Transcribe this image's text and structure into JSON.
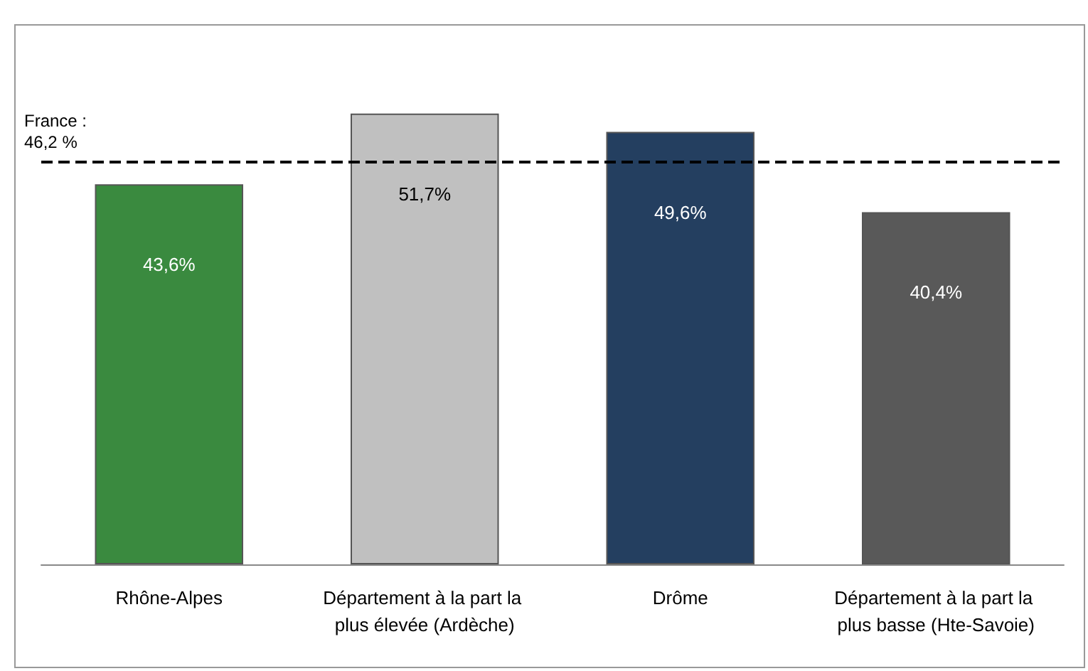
{
  "chart_data": {
    "type": "bar",
    "categories": [
      "Rhône-Alpes",
      "Département à la part la plus élevée (Ardèche)",
      "Drôme",
      "Département à la part la plus basse (Hte-Savoie)"
    ],
    "values": [
      43.6,
      51.7,
      49.6,
      40.4
    ],
    "colors": [
      "#3a8a3f",
      "#c0c0c0",
      "#243f60",
      "#595959"
    ],
    "value_labels": [
      "43,6%",
      "51,7%",
      "49,6%",
      "40,4%"
    ],
    "ref_lines": [
      {
        "axis": "y",
        "value": 46.2,
        "label": "France :\n46,2 %",
        "color": "#000000",
        "line_style": "dashed"
      }
    ]
  }
}
